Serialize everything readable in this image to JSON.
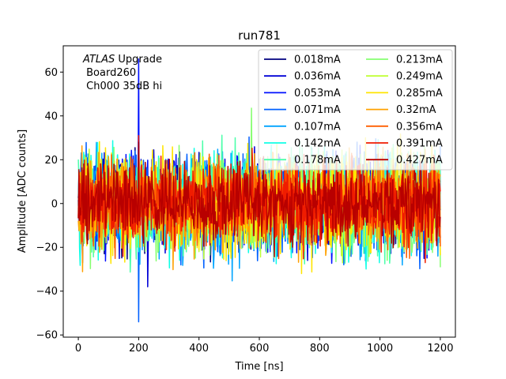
{
  "chart_data": {
    "type": "line",
    "title": "run781",
    "xlabel": "Time [ns]",
    "ylabel": "Amplitude [ADC counts]",
    "xlim": [
      -50,
      1250
    ],
    "ylim": [
      -61,
      72
    ],
    "xticks": [
      0,
      200,
      400,
      600,
      800,
      1000,
      1200
    ],
    "xtick_labels": [
      "0",
      "200",
      "400",
      "600",
      "800",
      "1000",
      "1200"
    ],
    "yticks": [
      -60,
      -40,
      -20,
      0,
      20,
      40,
      60
    ],
    "ytick_labels": [
      "−60",
      "−40",
      "−20",
      "0",
      "20",
      "40",
      "60"
    ],
    "x_range": [
      0,
      1200
    ],
    "legend_position": "top-right",
    "legend_columns": 2,
    "annotation": {
      "italic": "ATLAS",
      "line1_rest": " Upgrade",
      "line2": " Board260",
      "line3": " Ch000 35dB hi"
    },
    "series": [
      {
        "name": "0.018mA",
        "color": "#00007f",
        "amp": 11,
        "spike": [
          200,
          14
        ]
      },
      {
        "name": "0.036mA",
        "color": "#0000d6",
        "amp": 12,
        "spike": [
          230,
          -38
        ]
      },
      {
        "name": "0.053mA",
        "color": "#0010ff",
        "amp": 12,
        "spike": [
          200,
          66
        ]
      },
      {
        "name": "0.071mA",
        "color": "#0060ff",
        "amp": 13,
        "spike": [
          200,
          -54
        ]
      },
      {
        "name": "0.107mA",
        "color": "#00a4ff",
        "amp": 13,
        "spike": [
          200,
          -20
        ]
      },
      {
        "name": "0.142mA",
        "color": "#10ffe6",
        "amp": 13,
        "spike": [
          200,
          -22
        ]
      },
      {
        "name": "0.178mA",
        "color": "#4cffaa",
        "amp": 13,
        "spike": [
          520,
          30
        ]
      },
      {
        "name": "0.213mA",
        "color": "#86ff70",
        "amp": 12,
        "spike": [
          760,
          20
        ]
      },
      {
        "name": "0.249mA",
        "color": "#c0ff36",
        "amp": 12,
        "spike": [
          400,
          -22
        ]
      },
      {
        "name": "0.285mA",
        "color": "#ffe500",
        "amp": 13,
        "spike": [
          740,
          -32
        ]
      },
      {
        "name": "0.32mA",
        "color": "#ffa100",
        "amp": 12,
        "spike": [
          200,
          25
        ]
      },
      {
        "name": "0.356mA",
        "color": "#ff5f00",
        "amp": 11,
        "spike": [
          200,
          20
        ]
      },
      {
        "name": "0.391mA",
        "color": "#f01c00",
        "amp": 11,
        "spike": [
          200,
          31
        ]
      },
      {
        "name": "0.427mA",
        "color": "#b80000",
        "amp": 10,
        "spike": [
          200,
          28
        ]
      }
    ]
  }
}
